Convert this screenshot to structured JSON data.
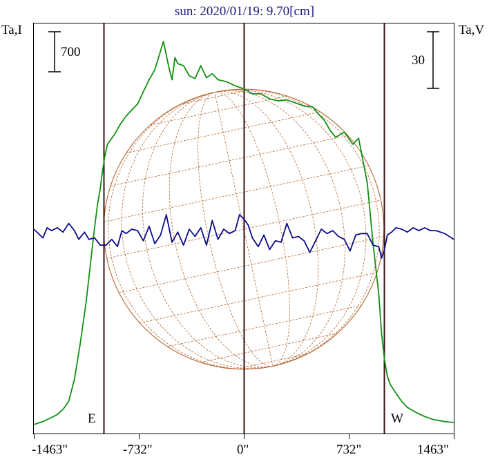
{
  "chart_data": {
    "type": "line",
    "title": "sun: 2020/01/19: 9.70[cm]",
    "left_axis_label": "Ta,I",
    "right_axis_label": "Ta,V",
    "left_scale_bar": "700",
    "right_scale_bar": "30",
    "limb_markers": {
      "east": "E",
      "west": "W"
    },
    "x_ticks": [
      {
        "value": -1463,
        "label": "-1463\""
      },
      {
        "value": -732,
        "label": "-732\""
      },
      {
        "value": 0,
        "label": "0\""
      },
      {
        "value": 732,
        "label": "732\""
      },
      {
        "value": 1463,
        "label": "1463\""
      }
    ],
    "xlim": [
      -1463,
      1463
    ],
    "vertical_lines": [
      -976,
      0,
      976
    ],
    "colors": {
      "I": "#109010",
      "V": "#0a0a8a",
      "disk": "#b5652f",
      "limb_lines": "#3a1010",
      "title": "#1b1b7a"
    },
    "series": [
      {
        "name": "I",
        "y_unit_hint": "stokes I, scale bar 700",
        "x": [
          -1463,
          -1400,
          -1340,
          -1300,
          -1260,
          -1220,
          -1180,
          -1140,
          -1100,
          -1080,
          -1060,
          -1040,
          -1020,
          -1000,
          -990,
          -970,
          -950,
          -900,
          -860,
          -820,
          -780,
          -740,
          -700,
          -660,
          -620,
          -560,
          -520,
          -500,
          -480,
          -460,
          -420,
          -380,
          -340,
          -300,
          -260,
          -220,
          -180,
          -120,
          -60,
          0,
          60,
          120,
          180,
          240,
          300,
          360,
          420,
          480,
          520,
          560,
          600,
          640,
          700,
          760,
          800,
          860,
          880,
          900,
          940,
          960,
          980,
          1000,
          1020,
          1060,
          1100,
          1140,
          1200,
          1260,
          1320,
          1400,
          1463
        ],
        "y": [
          0,
          30,
          70,
          100,
          150,
          230,
          450,
          800,
          1200,
          1450,
          1700,
          1950,
          2180,
          2340,
          2460,
          2650,
          2780,
          2880,
          2980,
          3060,
          3120,
          3180,
          3300,
          3420,
          3520,
          3800,
          3530,
          3420,
          3640,
          3580,
          3560,
          3460,
          3430,
          3560,
          3440,
          3480,
          3420,
          3400,
          3360,
          3330,
          3280,
          3280,
          3230,
          3210,
          3220,
          3190,
          3160,
          3150,
          3080,
          3020,
          2920,
          2850,
          2900,
          2780,
          2840,
          2400,
          2100,
          1800,
          1300,
          900,
          650,
          480,
          400,
          310,
          230,
          170,
          120,
          80,
          50,
          30,
          20
        ]
      },
      {
        "name": "V",
        "y_unit_hint": "stokes V, scale bar 30",
        "x": [
          -1463,
          -1400,
          -1370,
          -1340,
          -1300,
          -1260,
          -1220,
          -1180,
          -1150,
          -1110,
          -1080,
          -1040,
          -1000,
          -960,
          -920,
          -880,
          -850,
          -820,
          -780,
          -740,
          -700,
          -660,
          -620,
          -580,
          -540,
          -500,
          -460,
          -420,
          -380,
          -340,
          -300,
          -260,
          -220,
          -180,
          -140,
          -100,
          -60,
          -30,
          0,
          30,
          60,
          100,
          140,
          180,
          220,
          260,
          300,
          340,
          380,
          420,
          460,
          500,
          540,
          580,
          620,
          660,
          700,
          740,
          780,
          820,
          860,
          900,
          940,
          960,
          980,
          1000,
          1030,
          1060,
          1100,
          1140,
          1180,
          1220,
          1260,
          1300,
          1340,
          1400,
          1463
        ],
        "y": [
          0,
          -6,
          1,
          -1,
          1,
          -2,
          4,
          -1,
          -7,
          -2,
          -7,
          -6,
          -11,
          -11,
          -7,
          -12,
          -1,
          -3,
          0,
          -1,
          -8,
          2,
          -10,
          -4,
          10,
          -9,
          -2,
          -11,
          0,
          -5,
          1,
          -11,
          6,
          -7,
          0,
          -3,
          -1,
          10,
          7,
          3,
          -6,
          -12,
          -4,
          -14,
          -8,
          -9,
          4,
          -6,
          -5,
          -8,
          -16,
          -8,
          0,
          -3,
          -1,
          -5,
          -7,
          -15,
          -4,
          -3,
          -3,
          -11,
          -12,
          -20,
          -14,
          -4,
          -2,
          1,
          0,
          -2,
          1,
          -1,
          1,
          -1,
          -1,
          -3,
          -7
        ]
      }
    ]
  }
}
